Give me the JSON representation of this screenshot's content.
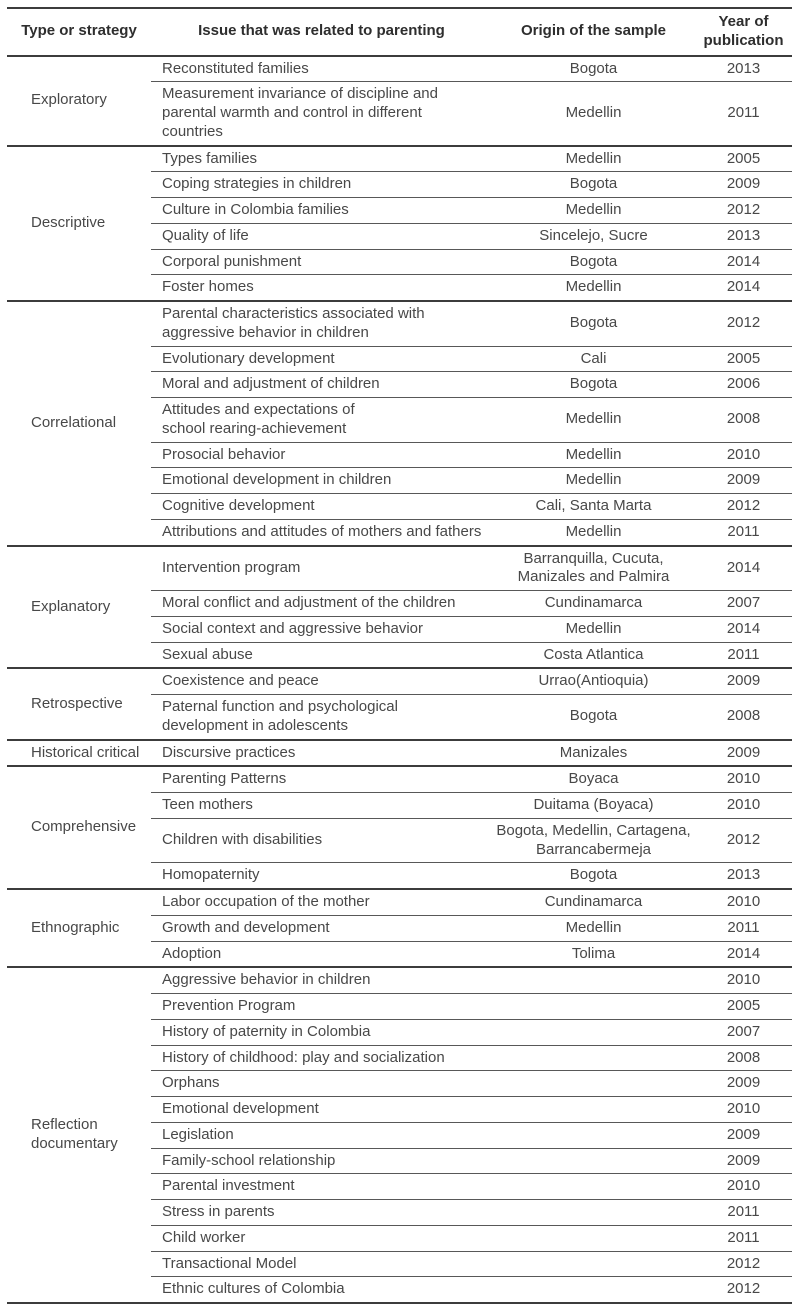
{
  "table": {
    "headers": [
      "Type or strategy",
      "Issue that was related to parenting",
      "Origin of the sample",
      "Year of\npublication"
    ],
    "groups": [
      {
        "type": "Exploratory",
        "rows": [
          {
            "issue": "Reconstituted families",
            "origin": "Bogota",
            "year": "2013"
          },
          {
            "issue": "Measurement invariance of discipline and\nparental warmth and control in different countries",
            "origin": "Medellin",
            "year": "2011"
          }
        ]
      },
      {
        "type": "Descriptive",
        "rows": [
          {
            "issue": "Types families",
            "origin": "Medellin",
            "year": "2005"
          },
          {
            "issue": "Coping strategies in children",
            "origin": "Bogota",
            "year": "2009"
          },
          {
            "issue": "Culture in Colombia families",
            "origin": "Medellin",
            "year": "2012"
          },
          {
            "issue": "Quality of life",
            "origin": "Sincelejo, Sucre",
            "year": "2013"
          },
          {
            "issue": "Corporal punishment",
            "origin": "Bogota",
            "year": "2014"
          },
          {
            "issue": "Foster homes",
            "origin": "Medellin",
            "year": "2014"
          }
        ]
      },
      {
        "type": "Correlational",
        "rows": [
          {
            "issue": "Parental characteristics associated with\naggressive behavior in children",
            "origin": "Bogota",
            "year": "2012"
          },
          {
            "issue": "Evolutionary development",
            "origin": "Cali",
            "year": "2005"
          },
          {
            "issue": "Moral and adjustment of children",
            "origin": "Bogota",
            "year": "2006"
          },
          {
            "issue": "Attitudes and expectations of\nschool rearing-achievement",
            "origin": "Medellin",
            "year": "2008"
          },
          {
            "issue": "Prosocial behavior",
            "origin": "Medellin",
            "year": "2010"
          },
          {
            "issue": "Emotional development in children",
            "origin": "Medellin",
            "year": "2009"
          },
          {
            "issue": "Cognitive development",
            "origin": "Cali, Santa Marta",
            "year": "2012"
          },
          {
            "issue": "Attributions and attitudes of mothers and fathers",
            "origin": "Medellin",
            "year": "2011"
          }
        ]
      },
      {
        "type": "Explanatory",
        "rows": [
          {
            "issue": "Intervention program",
            "origin": "Barranquilla, Cucuta,\nManizales and Palmira",
            "year": "2014"
          },
          {
            "issue": "Moral conflict and adjustment of the children",
            "origin": "Cundinamarca",
            "year": "2007"
          },
          {
            "issue": "Social context and aggressive behavior",
            "origin": "Medellin",
            "year": "2014"
          },
          {
            "issue": "Sexual abuse",
            "origin": "Costa Atlantica",
            "year": "2011"
          }
        ]
      },
      {
        "type": "Retrospective",
        "rows": [
          {
            "issue": "Coexistence and peace",
            "origin": "Urrao(Antioquia)",
            "year": "2009"
          },
          {
            "issue": "Paternal function and psychological\ndevelopment in adolescents",
            "origin": "Bogota",
            "year": "2008"
          }
        ]
      },
      {
        "type": "Historical critical",
        "rows": [
          {
            "issue": "Discursive practices",
            "origin": "Manizales",
            "year": "2009"
          }
        ]
      },
      {
        "type": "Comprehensive",
        "rows": [
          {
            "issue": "Parenting Patterns",
            "origin": "Boyaca",
            "year": "2010"
          },
          {
            "issue": "Teen mothers",
            "origin": "Duitama (Boyaca)",
            "year": "2010"
          },
          {
            "issue": "Children with disabilities",
            "origin": "Bogota, Medellin, Cartagena,\nBarrancabermeja",
            "year": "2012"
          },
          {
            "issue": "Homopaternity",
            "origin": "Bogota",
            "year": "2013"
          }
        ]
      },
      {
        "type": "Ethnographic",
        "rows": [
          {
            "issue": "Labor occupation of the mother",
            "origin": "Cundinamarca",
            "year": "2010"
          },
          {
            "issue": "Growth and development",
            "origin": "Medellin",
            "year": "2011"
          },
          {
            "issue": "Adoption",
            "origin": "Tolima",
            "year": "2014"
          }
        ]
      },
      {
        "type": "Reflection\ndocumentary",
        "rows": [
          {
            "issue": "Aggressive behavior in children",
            "origin": "",
            "year": "2010"
          },
          {
            "issue": "Prevention Program",
            "origin": "",
            "year": "2005"
          },
          {
            "issue": "History of paternity in Colombia",
            "origin": "",
            "year": "2007"
          },
          {
            "issue": "History of childhood: play and socialization",
            "origin": "",
            "year": "2008"
          },
          {
            "issue": "Orphans",
            "origin": "",
            "year": "2009"
          },
          {
            "issue": "Emotional development",
            "origin": "",
            "year": "2010"
          },
          {
            "issue": "Legislation",
            "origin": "",
            "year": "2009"
          },
          {
            "issue": "Family-school relationship",
            "origin": "",
            "year": "2009"
          },
          {
            "issue": "Parental investment",
            "origin": "",
            "year": "2010"
          },
          {
            "issue": "Stress in parents",
            "origin": "",
            "year": "2011"
          },
          {
            "issue": "Child worker",
            "origin": "",
            "year": "2011"
          },
          {
            "issue": "Transactional Model",
            "origin": "",
            "year": "2012"
          },
          {
            "issue": "Ethnic cultures of Colombia",
            "origin": "",
            "year": "2012"
          }
        ]
      }
    ]
  }
}
